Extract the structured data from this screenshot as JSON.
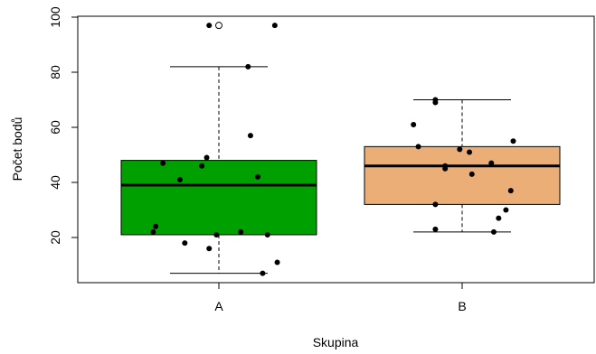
{
  "chart_data": {
    "type": "boxplot",
    "title": "",
    "xlabel": "Skupina",
    "ylabel": "Počet bodů",
    "ylim": [
      0,
      100
    ],
    "yticks": [
      20,
      40,
      60,
      80,
      100
    ],
    "grid": false,
    "categories": [
      "A",
      "B"
    ],
    "boxes": [
      {
        "name": "A",
        "color": "#00a000",
        "whisker_low": 7,
        "q1": 21,
        "median": 39,
        "q3": 48,
        "whisker_high": 82,
        "outliers": [
          97
        ]
      },
      {
        "name": "B",
        "color": "#ebae77",
        "whisker_low": 22,
        "q1": 32,
        "median": 46,
        "q3": 53,
        "whisker_high": 70,
        "outliers": []
      }
    ],
    "points": [
      {
        "group": "A",
        "x": 0.96,
        "y": 97
      },
      {
        "group": "A",
        "x": 1.23,
        "y": 97
      },
      {
        "group": "A",
        "x": 1.12,
        "y": 82
      },
      {
        "group": "A",
        "x": 1.13,
        "y": 57
      },
      {
        "group": "A",
        "x": 0.95,
        "y": 49
      },
      {
        "group": "A",
        "x": 0.77,
        "y": 47
      },
      {
        "group": "A",
        "x": 0.93,
        "y": 46
      },
      {
        "group": "A",
        "x": 1.16,
        "y": 42
      },
      {
        "group": "A",
        "x": 0.84,
        "y": 41
      },
      {
        "group": "A",
        "x": 0.74,
        "y": 24
      },
      {
        "group": "A",
        "x": 0.73,
        "y": 22
      },
      {
        "group": "A",
        "x": 0.99,
        "y": 21
      },
      {
        "group": "A",
        "x": 1.09,
        "y": 22
      },
      {
        "group": "A",
        "x": 1.2,
        "y": 21
      },
      {
        "group": "A",
        "x": 0.86,
        "y": 18
      },
      {
        "group": "A",
        "x": 0.96,
        "y": 16
      },
      {
        "group": "A",
        "x": 1.24,
        "y": 11
      },
      {
        "group": "A",
        "x": 1.18,
        "y": 7
      },
      {
        "group": "B",
        "x": 1.89,
        "y": 70
      },
      {
        "group": "B",
        "x": 1.89,
        "y": 69
      },
      {
        "group": "B",
        "x": 1.8,
        "y": 61
      },
      {
        "group": "B",
        "x": 2.21,
        "y": 55
      },
      {
        "group": "B",
        "x": 1.82,
        "y": 53
      },
      {
        "group": "B",
        "x": 1.99,
        "y": 52
      },
      {
        "group": "B",
        "x": 2.03,
        "y": 51
      },
      {
        "group": "B",
        "x": 2.12,
        "y": 47
      },
      {
        "group": "B",
        "x": 1.93,
        "y": 46
      },
      {
        "group": "B",
        "x": 1.93,
        "y": 45
      },
      {
        "group": "B",
        "x": 2.04,
        "y": 43
      },
      {
        "group": "B",
        "x": 2.2,
        "y": 37
      },
      {
        "group": "B",
        "x": 1.89,
        "y": 32
      },
      {
        "group": "B",
        "x": 2.18,
        "y": 30
      },
      {
        "group": "B",
        "x": 2.15,
        "y": 27
      },
      {
        "group": "B",
        "x": 1.89,
        "y": 23
      },
      {
        "group": "B",
        "x": 2.13,
        "y": 22
      }
    ]
  }
}
